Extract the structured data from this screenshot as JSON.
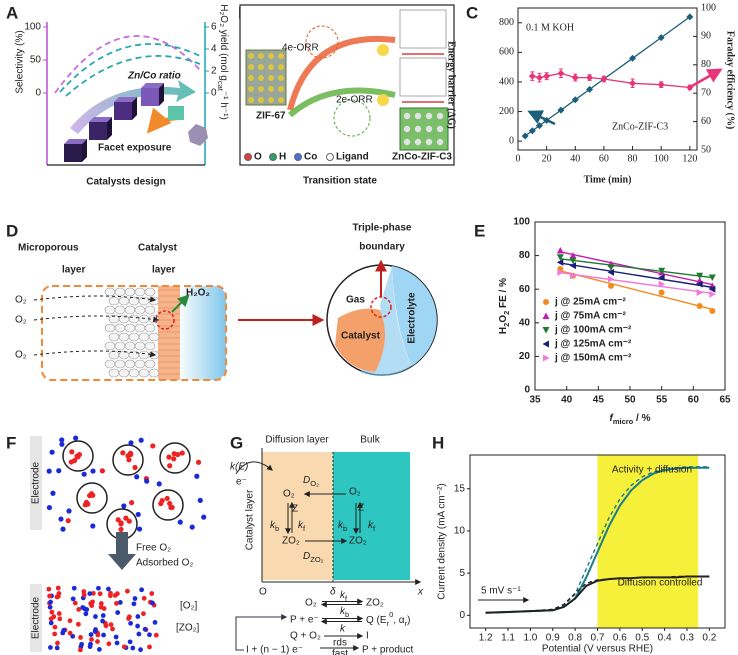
{
  "panel_labels": [
    "A",
    "B",
    "C",
    "D",
    "E",
    "F",
    "G",
    "H"
  ],
  "panel_a": {
    "y_label": "Selectivity (%)",
    "y2_label": [
      "H₂O₂ yield (mol g",
      "cat",
      "⁻¹ h⁻¹)"
    ],
    "ratio": "Zn/Co ratio",
    "facet": "Facet exposure",
    "x_label": "Catalysts design",
    "ylim": [
      0,
      100
    ],
    "yticks": [
      0,
      50,
      100
    ],
    "y2lim": [
      0,
      6
    ],
    "y2ticks": [
      0,
      2,
      4,
      6
    ]
  },
  "panel_b": {
    "four_e": "4e-ORR",
    "two_e": "2e-ORR",
    "zif67": "ZIF-67",
    "znco": "ZnCo-ZIF-C3",
    "energy": "Energy barrier (ΔG)",
    "transition": "Transition state",
    "legend": [
      "O",
      "H",
      "Co",
      "Ligand"
    ]
  },
  "panel_d": {
    "microporous": [
      "Microporous",
      "layer"
    ],
    "catalyst_layer": [
      "Catalyst",
      "layer"
    ],
    "o2": [
      "O₂",
      "O₂",
      "O₂"
    ],
    "h2o2": "H₂O₂",
    "boundary": [
      "Triple-phase",
      "boundary"
    ],
    "gas": "Gas",
    "catalyst": "Catalyst",
    "electrolyte": "Electrolyte"
  },
  "panel_f": {
    "electrode": [
      "Electrode",
      "Electrode"
    ],
    "free": "Free O₂",
    "adsorbed": "Adsorbed O₂",
    "conc_o2": "[O₂]",
    "conc_zo2": "[ZO₂]"
  },
  "panel_g": {
    "diffusion_layer": "Diffusion layer",
    "bulk": "Bulk",
    "k_e": "k(E)",
    "e": "e⁻",
    "catalyst_layer": "Catalyst layer",
    "d_o2": [
      "D",
      "O₂"
    ],
    "o2_left": "O₂",
    "z_left": "Z",
    "kb_left": [
      "k",
      "b"
    ],
    "kf_left": [
      "k",
      "f"
    ],
    "zo2_left": "ZO₂",
    "d_zo2": [
      "D",
      "ZO₂"
    ],
    "o2_right": "O₂",
    "z_right": "Z",
    "kb_right": [
      "k",
      "b"
    ],
    "kf_right": [
      "k",
      "f"
    ],
    "zo2_right": "ZO₂",
    "origin": "O",
    "delta": "δ",
    "x": "x",
    "r1": {
      "left": "O₂",
      "top": [
        "k",
        "f"
      ],
      "bottom": [
        "k",
        "b"
      ],
      "right": "ZO₂"
    },
    "r2": {
      "left": "P + e⁻",
      "right": [
        "Q (E",
        "r",
        "0",
        ", α",
        "r",
        ")"
      ]
    },
    "r3": {
      "left": "Q + O₂",
      "top": "k",
      "bottom": "rds",
      "right": "I"
    },
    "r4": {
      "left": "I + (n − 1) e⁻",
      "bottom": "fast",
      "right": "P + product"
    }
  },
  "chart_data": [
    {
      "type": "line",
      "text": "0.1 M KOH",
      "annotation": "ZnCo-ZIF-C3",
      "x_label": "Time (min)",
      "y2_label": "Faraday efficiency (%)",
      "xlim": [
        0,
        125
      ],
      "xticks": [
        0,
        20,
        40,
        60,
        80,
        100,
        120
      ],
      "ylim": [
        -60,
        900
      ],
      "yticks": [
        0,
        200,
        400,
        600,
        800
      ],
      "y2lim": [
        50,
        100
      ],
      "y2ticks": [
        50,
        60,
        70,
        80,
        90,
        100
      ],
      "series": [
        {
          "color": "#1b5f7a",
          "x": [
            5,
            10,
            15,
            20,
            30,
            40,
            50,
            60,
            80,
            100,
            120
          ],
          "values": [
            35,
            70,
            105,
            140,
            210,
            280,
            350,
            420,
            560,
            700,
            840
          ]
        },
        {
          "color": "#e8357a",
          "axis": "y2",
          "x": [
            10,
            15,
            20,
            30,
            40,
            50,
            60,
            80,
            100,
            120
          ],
          "values": [
            76,
            75.5,
            76,
            77,
            75.5,
            75.5,
            75,
            73.5,
            73,
            72
          ],
          "errors": [
            1.5,
            1.5,
            1.2,
            1.5,
            1.2,
            1,
            1,
            1.5,
            1,
            0.8
          ]
        }
      ]
    },
    {
      "type": "scatter",
      "x_label": [
        "f",
        "micro",
        " / %"
      ],
      "y_label": [
        "H",
        "2",
        "O",
        "2",
        " FE / %"
      ],
      "xlim": [
        35,
        65
      ],
      "xticks": [
        35,
        40,
        45,
        50,
        55,
        60,
        65
      ],
      "ylim": [
        0,
        100
      ],
      "yticks": [
        0,
        20,
        40,
        60,
        80,
        100
      ],
      "x": [
        39,
        41,
        47,
        55,
        61,
        63
      ],
      "series": [
        {
          "name": "j @ 25mA cm⁻²",
          "color": "#f28a1e",
          "values": [
            72,
            68,
            62,
            58,
            50,
            47
          ]
        },
        {
          "name": "j @ 75mA cm⁻²",
          "color": "#c21fb0",
          "values": [
            83,
            80,
            75,
            70,
            65,
            62
          ]
        },
        {
          "name": "j @ 100mA cm⁻²",
          "color": "#1f7a2e",
          "values": [
            79,
            77,
            73,
            71,
            68,
            67
          ]
        },
        {
          "name": "j @ 125mA cm⁻²",
          "color": "#1a1f7a",
          "values": [
            76,
            74,
            70,
            67,
            63,
            60
          ]
        },
        {
          "name": "j @ 150mA cm⁻²",
          "color": "#f07ad8",
          "values": [
            70,
            68,
            66,
            63,
            58,
            57
          ]
        }
      ]
    },
    {
      "type": "line",
      "x_label": "Potential (V versus RHE)",
      "y_label": "Current density (mA cm⁻²)",
      "annotations": [
        "Activity + diffusion",
        "Diffusion controlled",
        "5 mV s⁻¹"
      ],
      "xlim": [
        1.27,
        0.13
      ],
      "xticks": [
        1.2,
        1.1,
        {
          "value": 1,
          "label": "1.0"
        },
        0.9,
        0.8,
        0.7,
        0.6,
        0.5,
        0.4,
        0.3,
        0.2
      ],
      "ylim": [
        -1.5,
        19
      ],
      "yticks": [
        0,
        5,
        10,
        15
      ],
      "highlight": [
        0.7,
        0.25
      ],
      "highlight_color": "#f7f03a",
      "x": [
        1.2,
        1.1,
        1.0,
        0.9,
        0.85,
        0.8,
        0.75,
        0.7,
        0.65,
        0.6,
        0.55,
        0.5,
        0.45,
        0.4,
        0.35,
        0.3,
        0.25,
        0.2
      ],
      "series": [
        {
          "color": "#1a7d8c",
          "dash": false,
          "values": [
            0.3,
            0.4,
            0.5,
            0.6,
            1.0,
            2.0,
            4.5,
            7.5,
            10.5,
            13,
            14.8,
            16,
            16.8,
            17.2,
            17.4,
            17.5,
            17.5,
            17.5
          ]
        },
        {
          "color": "#1a7d8c",
          "dash": true,
          "values": [
            0.3,
            0.4,
            0.5,
            0.7,
            1.2,
            2.5,
            5.5,
            8.5,
            11.5,
            13.8,
            15.4,
            16.4,
            17,
            17.3,
            17.5,
            17.6,
            17.6,
            17.6
          ]
        },
        {
          "color": "#222222",
          "dash": false,
          "values": [
            0.3,
            0.4,
            0.5,
            0.6,
            1.0,
            2.0,
            3.5,
            4.1,
            4.3,
            4.4,
            4.4,
            4.5,
            4.5,
            4.5,
            4.5,
            4.6,
            4.6,
            4.6
          ]
        },
        {
          "color": "#222222",
          "dash": true,
          "values": [
            0.3,
            0.4,
            0.5,
            0.7,
            1.3,
            2.6,
            3.8,
            4.2,
            4.3,
            4.4,
            4.4,
            4.5,
            4.5,
            4.5,
            4.6,
            4.6,
            4.6,
            4.6
          ]
        }
      ]
    }
  ]
}
